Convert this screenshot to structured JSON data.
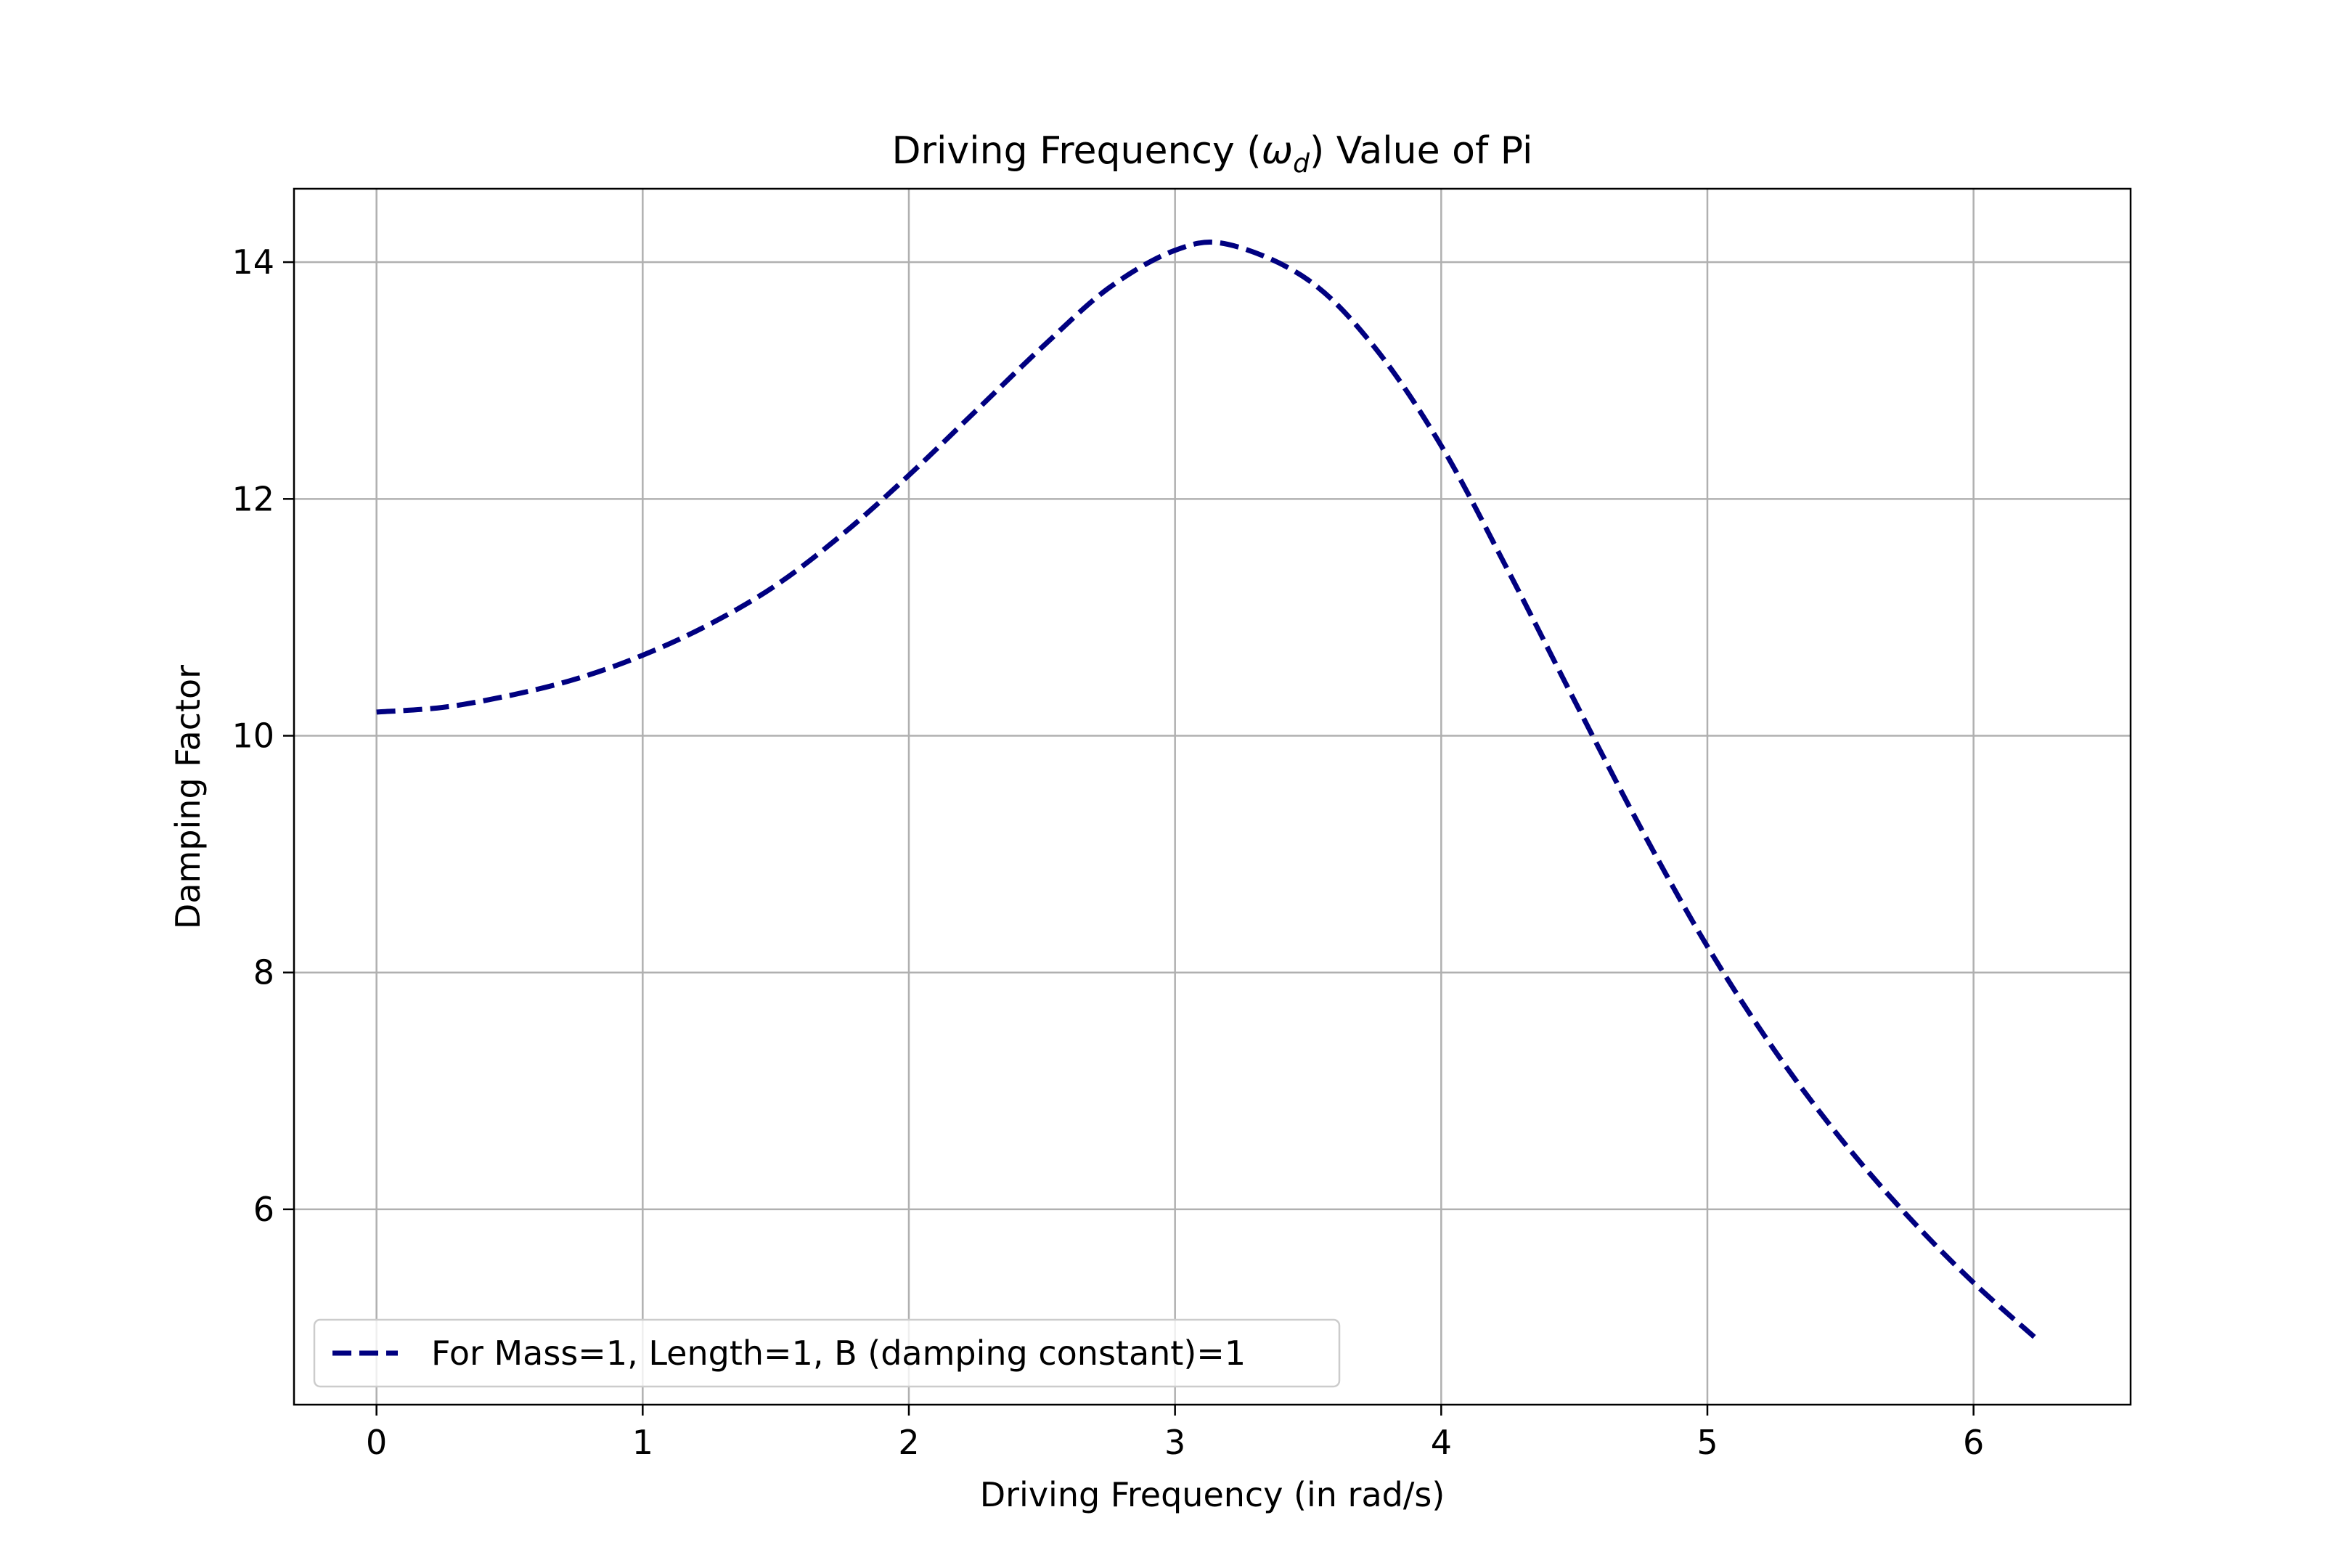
{
  "chart_data": {
    "type": "line",
    "title_prefix": "Driving Frequency (",
    "title_symbol": "ω",
    "title_subscript": "d",
    "title_suffix": ") Value of Pi",
    "xlabel": "Driving Frequency (in rad/s)",
    "ylabel": "Damping Factor",
    "xlim": [
      -0.31,
      6.59
    ],
    "ylim": [
      4.35,
      14.62
    ],
    "xticks": [
      0,
      1,
      2,
      3,
      4,
      5,
      6
    ],
    "xtick_labels": [
      "0",
      "1",
      "2",
      "3",
      "4",
      "5",
      "6"
    ],
    "yticks": [
      6,
      8,
      10,
      12,
      14
    ],
    "ytick_labels": [
      "6",
      "8",
      "10",
      "12",
      "14"
    ],
    "grid": true,
    "legend_position": "lower-left",
    "series": [
      {
        "name": "For Mass=1, Length=1, B (damping constant)=1",
        "color": "#000080",
        "linestyle": "dashed",
        "x": [
          0.0,
          0.25,
          0.5,
          0.75,
          1.0,
          1.25,
          1.5,
          1.75,
          2.0,
          2.25,
          2.5,
          2.75,
          3.0,
          3.2,
          3.5,
          3.75,
          4.0,
          4.25,
          4.5,
          4.75,
          5.0,
          5.25,
          5.5,
          5.75,
          6.0,
          6.25
        ],
        "y": [
          10.2,
          10.24,
          10.34,
          10.48,
          10.68,
          10.94,
          11.27,
          11.7,
          12.2,
          12.74,
          13.28,
          13.78,
          14.1,
          14.15,
          13.85,
          13.28,
          12.45,
          11.4,
          10.3,
          9.22,
          8.22,
          7.35,
          6.6,
          5.95,
          5.38,
          4.88
        ]
      }
    ]
  }
}
